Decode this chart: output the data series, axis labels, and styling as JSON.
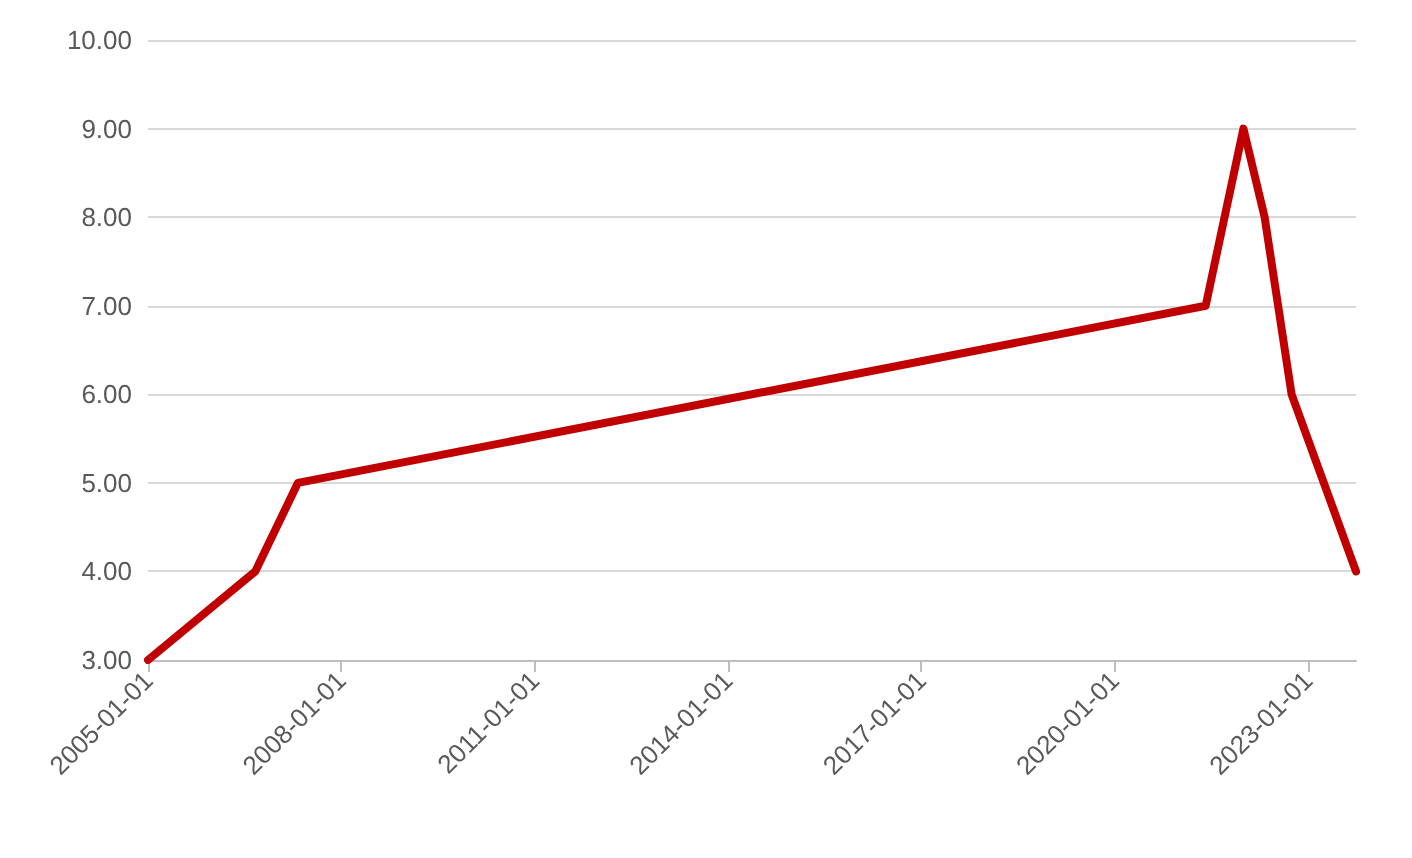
{
  "chart_data": {
    "type": "line",
    "x": [
      "2005-01",
      "2006-09",
      "2007-05",
      "2021-06",
      "2022-01",
      "2022-05",
      "2022-10",
      "2023-10"
    ],
    "series": [
      {
        "color": "#c00000",
        "values": [
          3,
          4,
          5,
          7,
          9,
          8,
          6,
          4
        ]
      }
    ],
    "xlim": [
      "2005-01",
      "2023-10"
    ],
    "xticks": [
      "2005-01-01",
      "2008-01-01",
      "2011-01-01",
      "2014-01-01",
      "2017-01-01",
      "2020-01-01",
      "2023-01-01"
    ],
    "ylim": [
      3,
      10
    ],
    "yticks": [
      {
        "value": 3,
        "label": "3.00"
      },
      {
        "value": 4,
        "label": "4.00"
      },
      {
        "value": 5,
        "label": "5.00"
      },
      {
        "value": 6,
        "label": "6.00"
      },
      {
        "value": 7,
        "label": "7.00"
      },
      {
        "value": 8,
        "label": "8.00"
      },
      {
        "value": 9,
        "label": "9.00"
      },
      {
        "value": 10,
        "label": "10.00"
      }
    ],
    "grid": "y",
    "marker": "none",
    "line_style": "solid"
  }
}
